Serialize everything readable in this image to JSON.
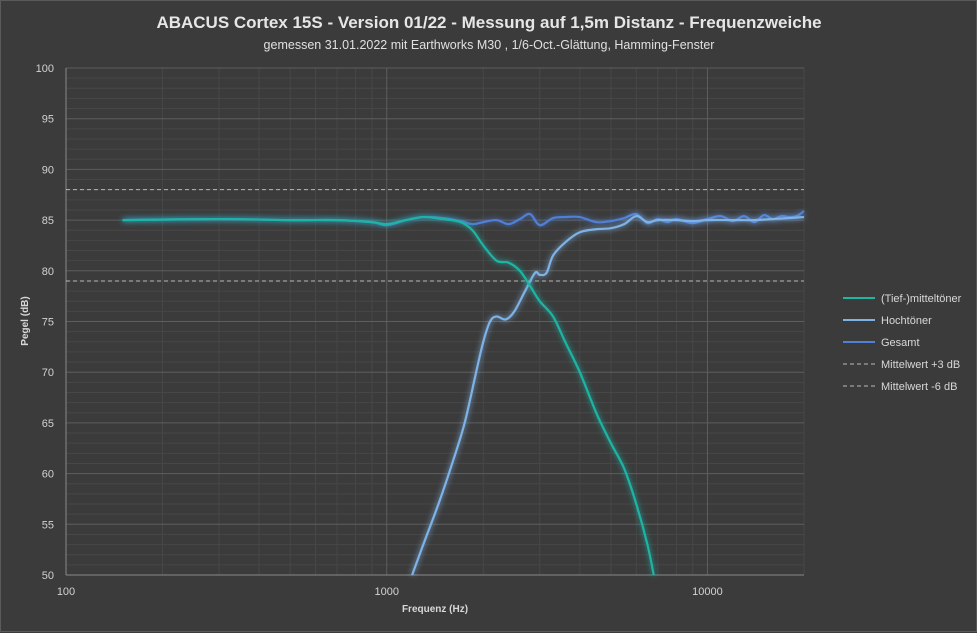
{
  "chart_data": {
    "type": "line",
    "title": "ABACUS Cortex 15S - Version 01/22 - Messung auf 1,5m Distanz - Frequenzweiche",
    "subtitle": "gemessen 31.01.2022  mit Earthworks M30 , 1/6-Oct.-Glättung, Hamming-Fenster",
    "xlabel": "Frequenz (Hz)",
    "ylabel": "Pegel (dB)",
    "x_scale": "log",
    "xlim": [
      100,
      20000
    ],
    "ylim": [
      50,
      100
    ],
    "x_ticks": [
      100,
      1000,
      10000
    ],
    "x_tick_labels": [
      "100",
      "1000",
      "10000"
    ],
    "y_ticks": [
      50,
      55,
      60,
      65,
      70,
      75,
      80,
      85,
      90,
      95,
      100
    ],
    "grid": true,
    "legend_position": "right",
    "series": [
      {
        "name": "(Tief-)mitteltöner",
        "color": "#1fb5a5",
        "style": "solid",
        "points": [
          [
            150,
            85
          ],
          [
            300,
            85.1
          ],
          [
            500,
            85
          ],
          [
            700,
            85
          ],
          [
            900,
            84.8
          ],
          [
            1000,
            84.6
          ],
          [
            1150,
            85
          ],
          [
            1300,
            85.3
          ],
          [
            1500,
            85.1
          ],
          [
            1700,
            84.8
          ],
          [
            1850,
            84
          ],
          [
            2000,
            82.5
          ],
          [
            2200,
            81
          ],
          [
            2400,
            80.8
          ],
          [
            2600,
            80
          ],
          [
            2800,
            78.5
          ],
          [
            3000,
            77
          ],
          [
            3300,
            75.5
          ],
          [
            3600,
            73
          ],
          [
            4000,
            70
          ],
          [
            4500,
            66
          ],
          [
            5000,
            63
          ],
          [
            5500,
            60.5
          ],
          [
            6000,
            57
          ],
          [
            6500,
            53
          ],
          [
            6800,
            50
          ]
        ]
      },
      {
        "name": "Hochtöner",
        "color": "#7fb2e5",
        "style": "solid",
        "points": [
          [
            1200,
            50
          ],
          [
            1300,
            53
          ],
          [
            1450,
            57
          ],
          [
            1600,
            61
          ],
          [
            1750,
            65
          ],
          [
            1900,
            70
          ],
          [
            2000,
            73
          ],
          [
            2100,
            75
          ],
          [
            2200,
            75.5
          ],
          [
            2350,
            75.2
          ],
          [
            2500,
            76
          ],
          [
            2700,
            78
          ],
          [
            2900,
            79.8
          ],
          [
            3000,
            79.6
          ],
          [
            3150,
            79.8
          ],
          [
            3300,
            81.5
          ],
          [
            3600,
            82.8
          ],
          [
            4000,
            83.8
          ],
          [
            4500,
            84.1
          ],
          [
            5000,
            84.2
          ],
          [
            5500,
            84.6
          ],
          [
            6000,
            85.4
          ],
          [
            6500,
            84.8
          ],
          [
            7000,
            85
          ],
          [
            8000,
            85
          ],
          [
            9000,
            84.9
          ],
          [
            10000,
            85
          ],
          [
            12000,
            85
          ],
          [
            14000,
            85
          ],
          [
            16000,
            85.1
          ],
          [
            18000,
            85.2
          ],
          [
            20000,
            85.3
          ]
        ]
      },
      {
        "name": "Gesamt",
        "color": "#4f7fd6",
        "style": "solid",
        "points": [
          [
            150,
            85
          ],
          [
            300,
            85.1
          ],
          [
            500,
            85
          ],
          [
            700,
            85
          ],
          [
            900,
            84.8
          ],
          [
            1000,
            84.5
          ],
          [
            1150,
            85
          ],
          [
            1300,
            85.3
          ],
          [
            1500,
            85.2
          ],
          [
            1700,
            84.9
          ],
          [
            1850,
            84.6
          ],
          [
            2000,
            84.8
          ],
          [
            2200,
            85
          ],
          [
            2400,
            84.6
          ],
          [
            2600,
            85.1
          ],
          [
            2800,
            85.6
          ],
          [
            3000,
            84.5
          ],
          [
            3300,
            85.2
          ],
          [
            3600,
            85.3
          ],
          [
            4000,
            85.3
          ],
          [
            4500,
            84.8
          ],
          [
            5000,
            84.9
          ],
          [
            5500,
            85.2
          ],
          [
            6000,
            85.6
          ],
          [
            6500,
            84.7
          ],
          [
            7000,
            85.1
          ],
          [
            7500,
            84.8
          ],
          [
            8000,
            85.1
          ],
          [
            9000,
            84.7
          ],
          [
            10000,
            85.1
          ],
          [
            11000,
            85.4
          ],
          [
            12000,
            84.9
          ],
          [
            13000,
            85.4
          ],
          [
            14000,
            84.8
          ],
          [
            15000,
            85.5
          ],
          [
            16000,
            85.1
          ],
          [
            17000,
            85.4
          ],
          [
            18000,
            85.3
          ],
          [
            19000,
            85.4
          ],
          [
            20000,
            85.9
          ]
        ]
      },
      {
        "name": "Mittelwert +3 dB",
        "color": "#b8b8b8",
        "style": "dashed",
        "points": [
          [
            100,
            88
          ],
          [
            20000,
            88
          ]
        ]
      },
      {
        "name": "Mittelwert -6 dB",
        "color": "#b8b8b8",
        "style": "dashed",
        "points": [
          [
            100,
            79
          ],
          [
            20000,
            79
          ]
        ]
      }
    ]
  }
}
